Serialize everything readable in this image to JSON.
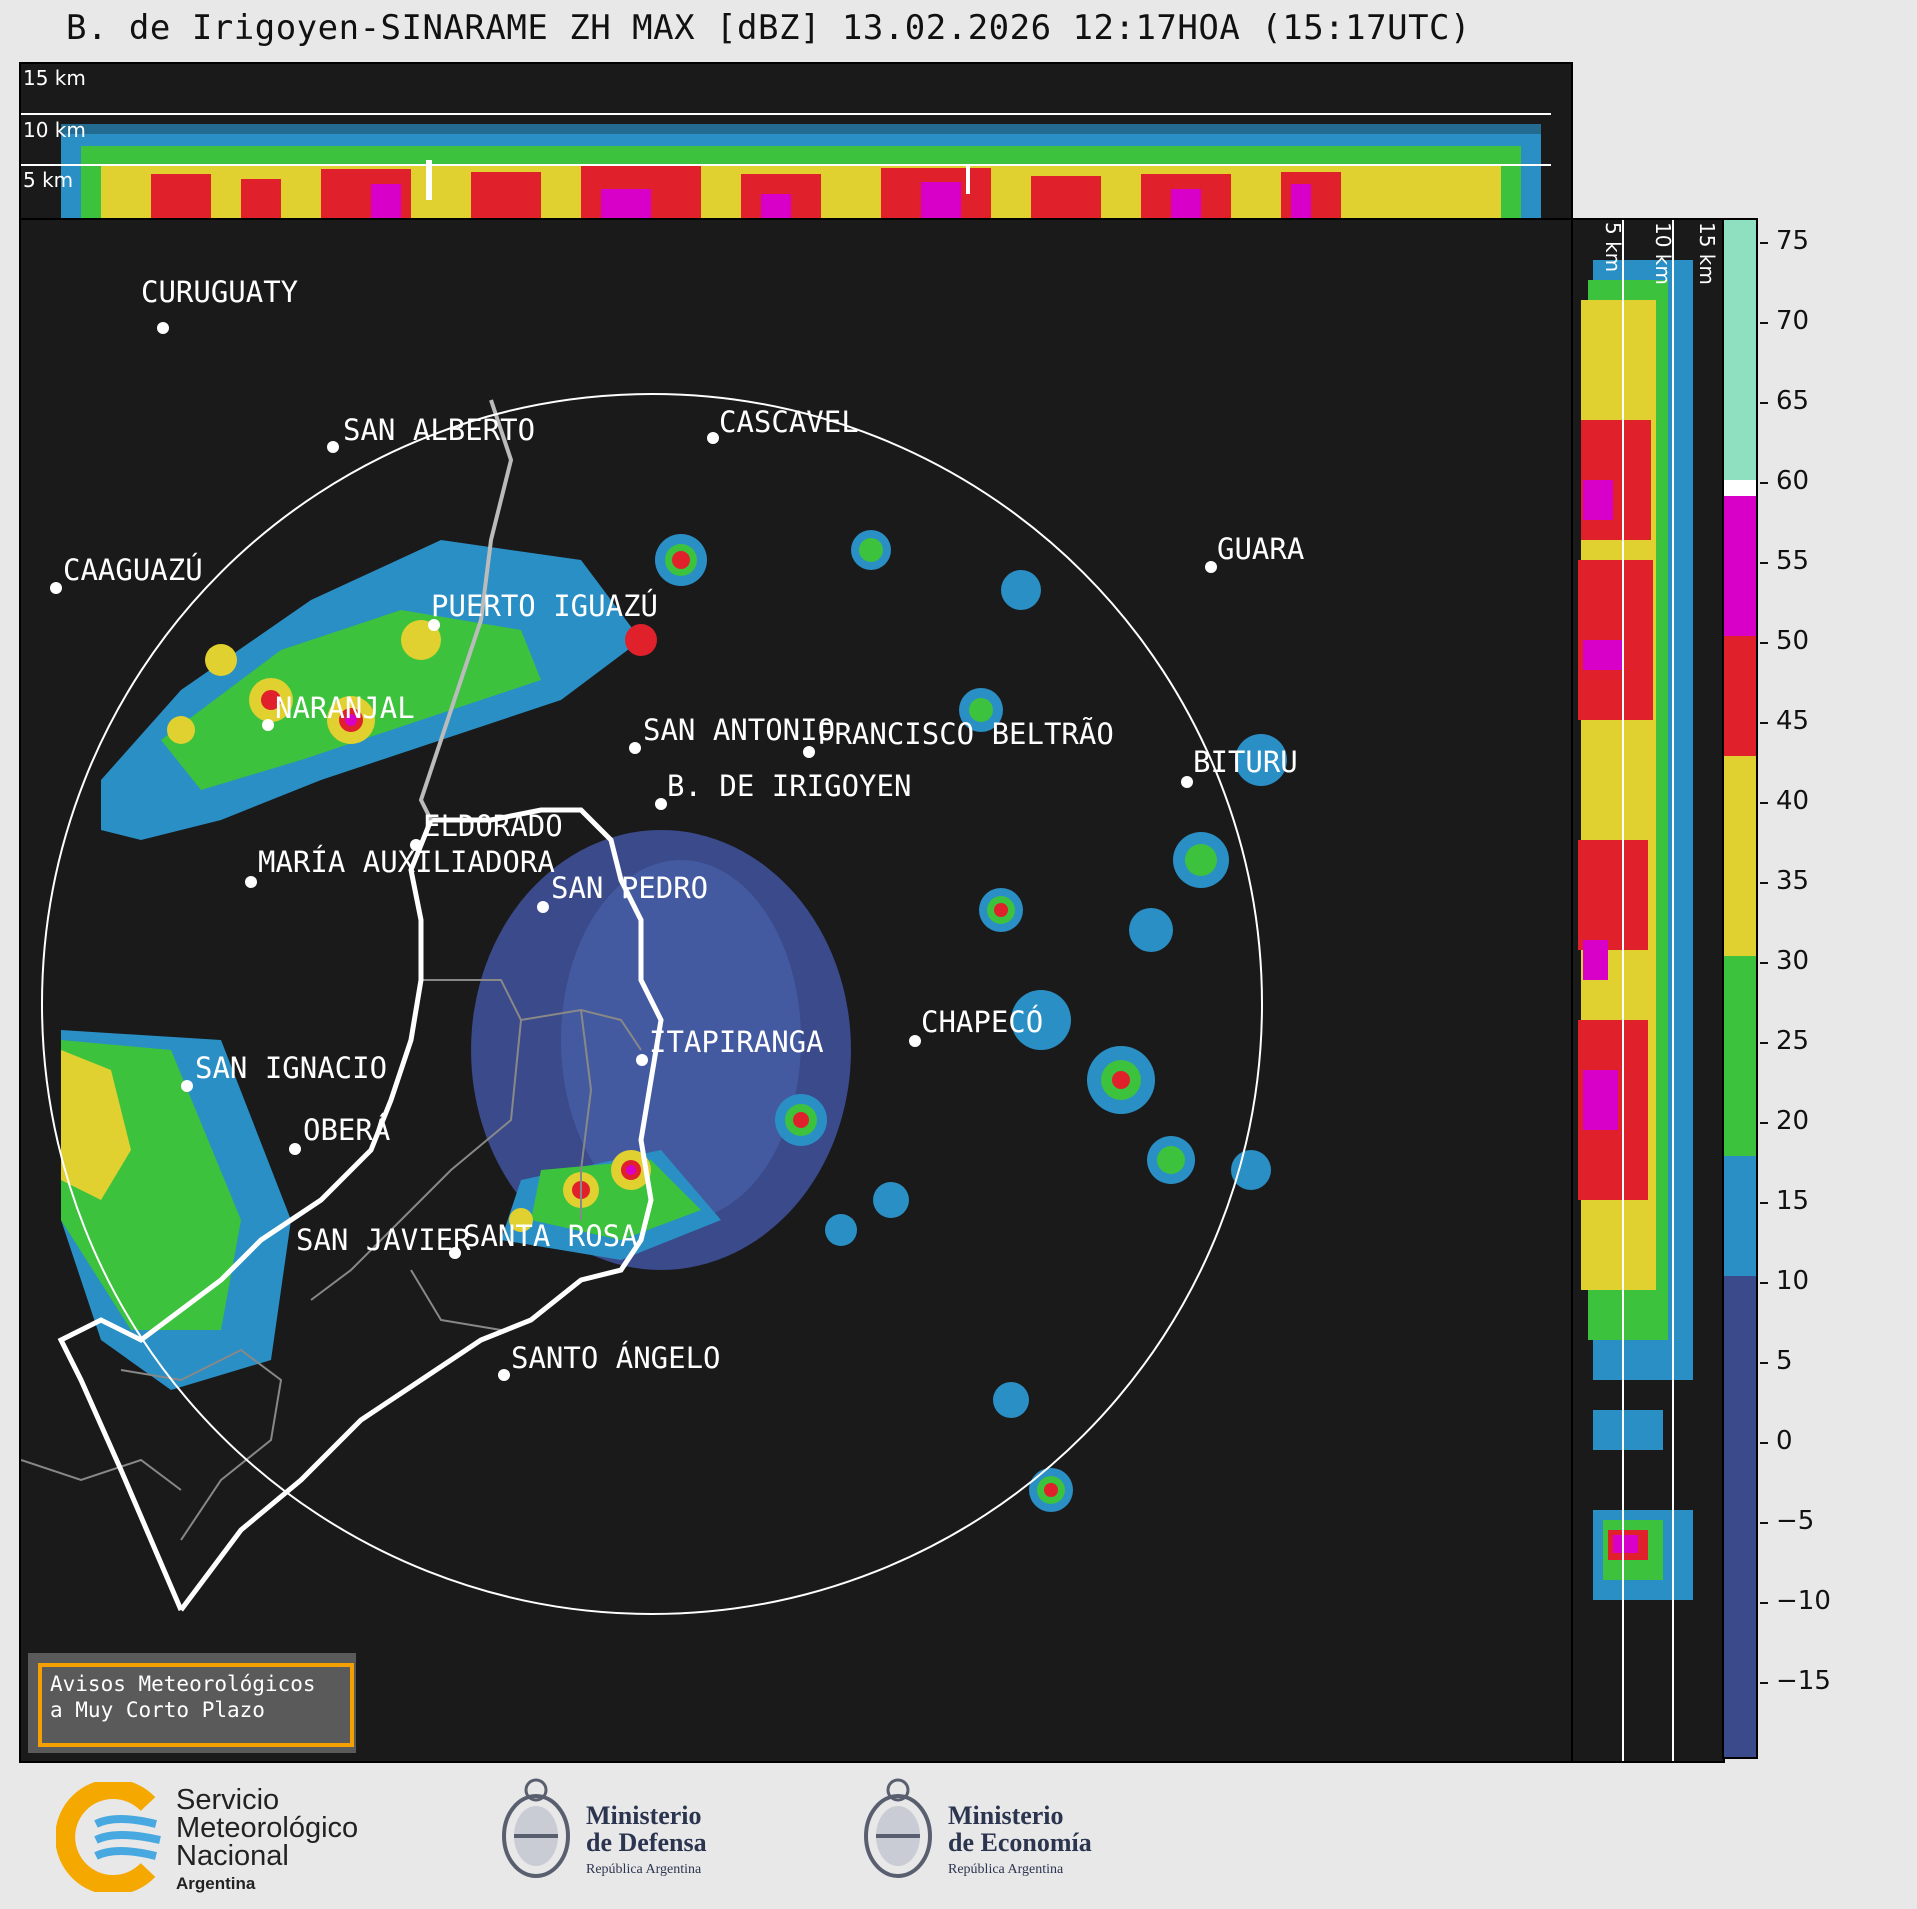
{
  "title": "B. de Irigoyen-SINARAME ZH MAX [dBZ] 13.02.2026 12:17HOA (15:17UTC)",
  "top_panel": {
    "height_labels": [
      "15 km",
      "10 km",
      "5 km"
    ]
  },
  "side_panel": {
    "height_labels": [
      "5 km",
      "10 km",
      "15 km"
    ]
  },
  "colorbar": {
    "unit": "dBZ",
    "ticks": [
      "75",
      "70",
      "65",
      "60",
      "55",
      "50",
      "45",
      "40",
      "35",
      "30",
      "25",
      "20",
      "15",
      "10",
      "5",
      "0",
      "−5",
      "−10",
      "−15"
    ],
    "colors": {
      "dBZ_-20_to_10": "#3a4a8a",
      "dBZ_10_to_18": "#2a8fc4",
      "dBZ_18_to_30": "#3cc23c",
      "dBZ_30_to_42": "#e0d030",
      "dBZ_42_to_48": "#e0202a",
      "dBZ_48_to_58": "#d800c8",
      "dBZ_60_to_75": "#8fe0c0"
    }
  },
  "cities": [
    {
      "name": "CURUGUATY"
    },
    {
      "name": "SAN ALBERTO"
    },
    {
      "name": "CASCAVEL"
    },
    {
      "name": "CAAGUAZÚ"
    },
    {
      "name": "GUARA"
    },
    {
      "name": "PUERTO IGUAZÚ"
    },
    {
      "name": "NARANJAL"
    },
    {
      "name": "SAN ANTONIO"
    },
    {
      "name": "FRANCISCO BELTRÃO"
    },
    {
      "name": "BITURU"
    },
    {
      "name": "B. DE IRIGOYEN"
    },
    {
      "name": "ELDORADO"
    },
    {
      "name": "MARÍA AUXILIADORA"
    },
    {
      "name": "SAN PEDRO"
    },
    {
      "name": "CHAPECÓ"
    },
    {
      "name": "ITAPIRANGA"
    },
    {
      "name": "SAN IGNACIO"
    },
    {
      "name": "OBERÁ"
    },
    {
      "name": "SAN JAVIER"
    },
    {
      "name": "SANTA ROSA"
    },
    {
      "name": "SANTO ÁNGELO"
    }
  ],
  "avisos": {
    "line1": "Avisos Meteorológicos",
    "line2": "a Muy Corto Plazo"
  },
  "footer": {
    "smn": {
      "line1": "Servicio",
      "line2": "Meteorológico",
      "line3": "Nacional",
      "line4": "Argentina"
    },
    "defensa": {
      "line1": "Ministerio",
      "line2": "de Defensa",
      "line3": "República Argentina"
    },
    "economia": {
      "line1": "Ministerio",
      "line2": "de Economía",
      "line3": "República Argentina"
    }
  }
}
